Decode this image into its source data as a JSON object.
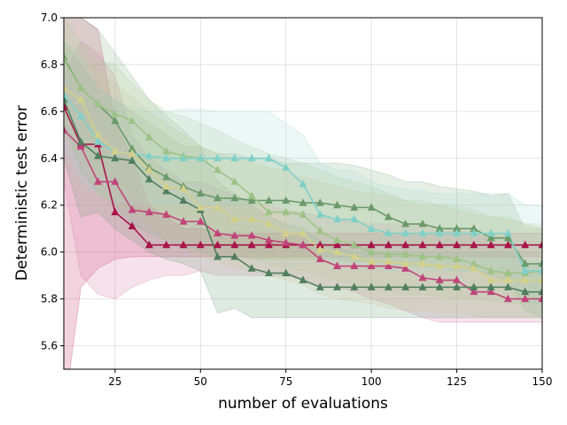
{
  "chart_data": {
    "type": "line",
    "title": "",
    "xlabel": "number of evaluations",
    "ylabel": "Deterministic test error",
    "xlim": [
      10,
      150
    ],
    "ylim": [
      5.5,
      7.0
    ],
    "xticks": [
      25,
      50,
      75,
      100,
      125,
      150
    ],
    "yticks": [
      5.6,
      5.8,
      6.0,
      6.2,
      6.4,
      6.6,
      6.8,
      7.0
    ],
    "grid": true,
    "legend": "none",
    "x": [
      10,
      15,
      20,
      25,
      30,
      35,
      40,
      45,
      50,
      55,
      60,
      65,
      70,
      75,
      80,
      85,
      90,
      95,
      100,
      105,
      110,
      115,
      120,
      125,
      130,
      135,
      140,
      145,
      150
    ],
    "series": [
      {
        "name": "crimson",
        "color": "#a8144a",
        "band_color": "#c9356b",
        "values": [
          6.62,
          6.46,
          6.46,
          6.17,
          6.11,
          6.03,
          6.03,
          6.03,
          6.03,
          6.03,
          6.03,
          6.03,
          6.03,
          6.03,
          6.03,
          6.03,
          6.03,
          6.03,
          6.03,
          6.03,
          6.03,
          6.03,
          6.03,
          6.03,
          6.03,
          6.03,
          6.03,
          6.03,
          6.03
        ],
        "band_lower": [
          5.3,
          5.85,
          5.93,
          5.97,
          5.98,
          5.98,
          5.98,
          5.98,
          5.98,
          5.98,
          5.98,
          5.98,
          5.98,
          5.98,
          5.98,
          5.98,
          5.98,
          5.98,
          5.98,
          5.98,
          5.98,
          5.98,
          5.98,
          5.98,
          5.98,
          5.98,
          5.98,
          5.98,
          5.98
        ],
        "band_upper": [
          7.0,
          7.0,
          6.95,
          6.55,
          6.4,
          6.2,
          6.15,
          6.1,
          6.1,
          6.08,
          6.08,
          6.08,
          6.08,
          6.08,
          6.08,
          6.08,
          6.08,
          6.08,
          6.08,
          6.08,
          6.08,
          6.08,
          6.08,
          6.08,
          6.08,
          6.08,
          6.08,
          6.08,
          6.08
        ]
      },
      {
        "name": "pink",
        "color": "#c0447a",
        "band_color": "#d77ba5",
        "values": [
          6.52,
          6.45,
          6.3,
          6.3,
          6.18,
          6.17,
          6.16,
          6.13,
          6.13,
          6.08,
          6.07,
          6.07,
          6.05,
          6.04,
          6.03,
          5.97,
          5.94,
          5.94,
          5.94,
          5.94,
          5.93,
          5.89,
          5.88,
          5.88,
          5.83,
          5.83,
          5.8,
          5.8,
          5.8
        ],
        "band_lower": [
          6.3,
          5.9,
          5.82,
          5.8,
          5.85,
          5.88,
          5.9,
          5.9,
          5.92,
          5.9,
          5.9,
          5.9,
          5.9,
          5.9,
          5.88,
          5.85,
          5.85,
          5.83,
          5.8,
          5.78,
          5.75,
          5.72,
          5.7,
          5.7,
          5.7,
          5.7,
          5.7,
          5.7,
          5.7
        ],
        "band_upper": [
          6.75,
          6.9,
          6.85,
          6.75,
          6.5,
          6.4,
          6.35,
          6.3,
          6.3,
          6.27,
          6.24,
          6.22,
          6.2,
          6.18,
          6.17,
          6.15,
          6.14,
          6.13,
          6.12,
          6.12,
          6.12,
          6.12,
          6.1,
          6.1,
          6.08,
          6.05,
          6.02,
          6.0,
          6.0
        ]
      },
      {
        "name": "dark green",
        "color": "#4f7f5f",
        "band_color": "#6e9e7e",
        "values": [
          6.65,
          6.47,
          6.41,
          6.4,
          6.39,
          6.31,
          6.26,
          6.22,
          6.18,
          5.98,
          5.98,
          5.93,
          5.91,
          5.91,
          5.88,
          5.85,
          5.85,
          5.85,
          5.85,
          5.85,
          5.85,
          5.85,
          5.85,
          5.85,
          5.85,
          5.85,
          5.85,
          5.83,
          5.83
        ],
        "band_lower": [
          6.4,
          6.15,
          6.17,
          6.1,
          6.05,
          6.0,
          5.97,
          5.95,
          5.92,
          5.74,
          5.76,
          5.72,
          5.72,
          5.72,
          5.72,
          5.72,
          5.72,
          5.72,
          5.72,
          5.72,
          5.72,
          5.72,
          5.72,
          5.72,
          5.72,
          5.72,
          5.72,
          5.72,
          5.72
        ],
        "band_upper": [
          6.9,
          6.8,
          6.7,
          6.65,
          6.6,
          6.55,
          6.5,
          6.45,
          6.45,
          6.3,
          6.25,
          6.2,
          6.15,
          6.12,
          6.1,
          6.05,
          6.02,
          6.0,
          6.0,
          6.0,
          6.0,
          6.0,
          6.0,
          6.0,
          6.0,
          6.0,
          6.0,
          5.95,
          5.95
        ]
      },
      {
        "name": "sage green",
        "color": "#6a9a6a",
        "band_color": "#8fb58f",
        "values": [
          6.83,
          6.7,
          6.63,
          6.56,
          6.44,
          6.36,
          6.32,
          6.28,
          6.25,
          6.23,
          6.23,
          6.22,
          6.22,
          6.22,
          6.21,
          6.21,
          6.2,
          6.19,
          6.19,
          6.15,
          6.12,
          6.12,
          6.1,
          6.1,
          6.1,
          6.06,
          6.06,
          5.95,
          5.95
        ],
        "band_lower": [
          6.55,
          6.35,
          6.25,
          6.2,
          6.12,
          6.08,
          6.05,
          6.02,
          6.0,
          5.98,
          5.98,
          5.97,
          5.97,
          5.97,
          5.97,
          5.97,
          5.97,
          5.96,
          5.96,
          5.95,
          5.94,
          5.94,
          5.93,
          5.92,
          5.92,
          5.9,
          5.88,
          5.75,
          5.72
        ],
        "band_upper": [
          7.0,
          7.0,
          6.95,
          6.85,
          6.75,
          6.65,
          6.58,
          6.52,
          6.45,
          6.42,
          6.42,
          6.4,
          6.4,
          6.38,
          6.38,
          6.38,
          6.38,
          6.37,
          6.35,
          6.33,
          6.3,
          6.3,
          6.28,
          6.27,
          6.26,
          6.24,
          6.25,
          6.1,
          6.1
        ]
      },
      {
        "name": "light green",
        "color": "#9ec286",
        "band_color": "#b3cf9a",
        "values": [
          6.82,
          6.7,
          6.63,
          6.59,
          6.56,
          6.49,
          6.43,
          6.41,
          6.4,
          6.35,
          6.3,
          6.24,
          6.17,
          6.17,
          6.16,
          6.09,
          6.05,
          6.03,
          6.0,
          5.99,
          5.99,
          5.98,
          5.98,
          5.97,
          5.95,
          5.92,
          5.91,
          5.91,
          5.92
        ],
        "band_lower": [
          6.6,
          6.45,
          6.35,
          6.3,
          6.25,
          6.2,
          6.15,
          6.12,
          6.1,
          6.05,
          6.0,
          5.98,
          5.95,
          5.93,
          5.92,
          5.9,
          5.88,
          5.86,
          5.84,
          5.83,
          5.82,
          5.82,
          5.81,
          5.8,
          5.8,
          5.79,
          5.78,
          5.78,
          5.78
        ],
        "band_upper": [
          7.0,
          6.9,
          6.82,
          6.8,
          6.72,
          6.65,
          6.6,
          6.58,
          6.55,
          6.52,
          6.48,
          6.45,
          6.42,
          6.4,
          6.38,
          6.35,
          6.32,
          6.3,
          6.28,
          6.25,
          6.22,
          6.22,
          6.2,
          6.2,
          6.18,
          6.15,
          6.15,
          6.12,
          6.12
        ]
      },
      {
        "name": "light teal",
        "color": "#7fd0c8",
        "band_color": "#a8dcd8",
        "values": [
          6.67,
          6.58,
          6.47,
          6.43,
          6.42,
          6.41,
          6.4,
          6.4,
          6.4,
          6.4,
          6.4,
          6.4,
          6.4,
          6.36,
          6.29,
          6.16,
          6.14,
          6.14,
          6.1,
          6.08,
          6.08,
          6.08,
          6.08,
          6.08,
          6.08,
          6.08,
          6.08,
          5.92,
          5.92
        ],
        "band_lower": [
          6.45,
          6.3,
          6.25,
          6.22,
          6.2,
          6.2,
          6.2,
          6.2,
          6.2,
          6.2,
          6.2,
          6.2,
          6.2,
          6.15,
          6.08,
          5.98,
          5.95,
          5.95,
          5.93,
          5.92,
          5.92,
          5.92,
          5.92,
          5.92,
          5.92,
          5.92,
          5.92,
          5.78,
          5.78
        ],
        "band_upper": [
          6.9,
          6.85,
          6.7,
          6.65,
          6.62,
          6.6,
          6.6,
          6.61,
          6.61,
          6.6,
          6.6,
          6.6,
          6.6,
          6.55,
          6.5,
          6.38,
          6.35,
          6.35,
          6.3,
          6.28,
          6.27,
          6.26,
          6.25,
          6.25,
          6.25,
          6.25,
          6.25,
          6.2,
          6.2
        ]
      },
      {
        "name": "khaki",
        "color": "#d4d08a",
        "band_color": "#c9c79a",
        "values": [
          6.7,
          6.65,
          6.5,
          6.43,
          6.42,
          6.35,
          6.28,
          6.27,
          6.19,
          6.19,
          6.14,
          6.14,
          6.12,
          6.08,
          6.08,
          6.01,
          6.0,
          5.98,
          5.96,
          5.96,
          5.95,
          5.95,
          5.94,
          5.94,
          5.93,
          5.88,
          5.88,
          5.88,
          5.88
        ],
        "band_lower": [
          6.5,
          6.4,
          6.25,
          6.2,
          6.18,
          6.12,
          6.05,
          6.02,
          5.98,
          5.96,
          5.93,
          5.92,
          5.9,
          5.88,
          5.86,
          5.82,
          5.8,
          5.79,
          5.78,
          5.76,
          5.75,
          5.75,
          5.74,
          5.74,
          5.73,
          5.72,
          5.72,
          5.72,
          5.72
        ],
        "band_upper": [
          6.9,
          6.85,
          6.78,
          6.72,
          6.66,
          6.6,
          6.55,
          6.5,
          6.45,
          6.42,
          6.4,
          6.38,
          6.36,
          6.34,
          6.32,
          6.3,
          6.28,
          6.26,
          6.25,
          6.24,
          6.22,
          6.2,
          6.2,
          6.18,
          6.16,
          6.15,
          6.14,
          6.12,
          6.1
        ]
      }
    ]
  }
}
